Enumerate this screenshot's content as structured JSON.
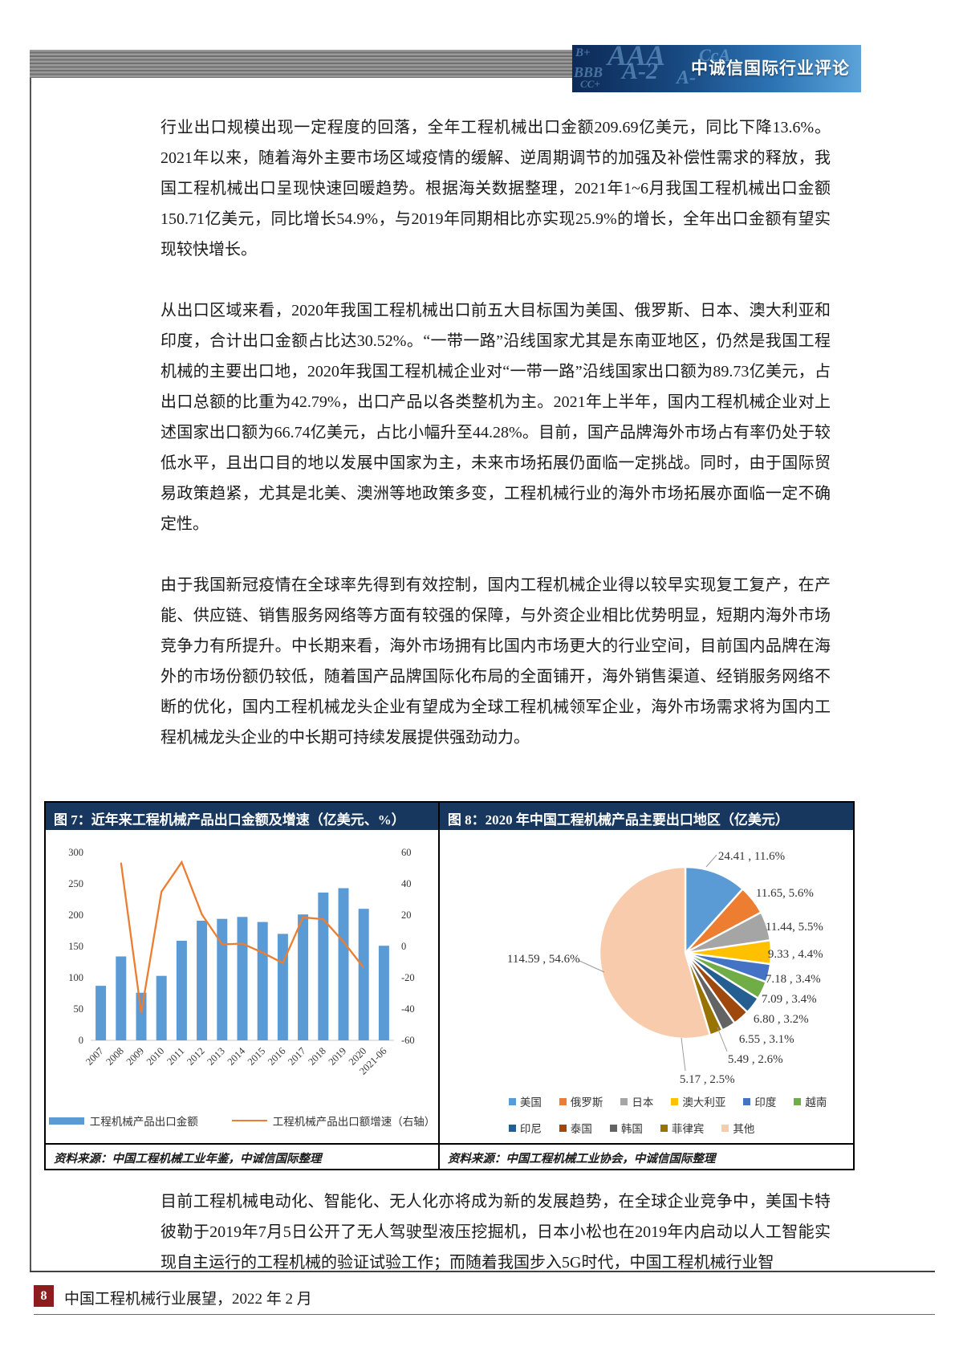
{
  "header": {
    "banner_title": "中诚信国际行业评论",
    "banner_watermarks": [
      "B+",
      "AAA",
      "CcA",
      "BBB",
      "A-2",
      "CC+",
      "A-"
    ]
  },
  "paragraphs": [
    "行业出口规模出现一定程度的回落，全年工程机械出口金额209.69亿美元，同比下降13.6%。2021年以来，随着海外主要市场区域疫情的缓解、逆周期调节的加强及补偿性需求的释放，我国工程机械出口呈现快速回暖趋势。根据海关数据整理，2021年1~6月我国工程机械出口金额150.71亿美元，同比增长54.9%，与2019年同期相比亦实现25.9%的增长，全年出口金额有望实现较快增长。",
    "从出口区域来看，2020年我国工程机械出口前五大目标国为美国、俄罗斯、日本、澳大利亚和印度，合计出口金额占比达30.52%。“一带一路”沿线国家尤其是东南亚地区，仍然是我国工程机械的主要出口地，2020年我国工程机械企业对“一带一路”沿线国家出口额为89.73亿美元，占出口总额的比重为42.79%，出口产品以各类整机为主。2021年上半年，国内工程机械企业对上述国家出口额为66.74亿美元，占比小幅升至44.28%。目前，国产品牌海外市场占有率仍处于较低水平，且出口目的地以发展中国家为主，未来市场拓展仍面临一定挑战。同时，由于国际贸易政策趋紧，尤其是北美、澳洲等地政策多变，工程机械行业的海外市场拓展亦面临一定不确定性。",
    "由于我国新冠疫情在全球率先得到有效控制，国内工程机械企业得以较早实现复工复产，在产能、供应链、销售服务网络等方面有较强的保障，与外资企业相比优势明显，短期内海外市场竞争力有所提升。中长期来看，海外市场拥有比国内市场更大的行业空间，目前国内品牌在海外的市场份额仍较低，随着国产品牌国际化布局的全面铺开，海外销售渠道、经销服务网络不断的优化，国内工程机械龙头企业有望成为全球工程机械领军企业，海外市场需求将为国内工程机械龙头企业的中长期可持续发展提供强劲动力。",
    "目前工程机械电动化、智能化、无人化亦将成为新的发展趋势，在全球企业竞争中，美国卡特彼勒于2019年7月5日公开了无人驾驶型液压挖掘机，日本小松也在2019年内启动以人工智能实现自主运行的工程机械的验证试验工作；而随着我国步入5G时代，中国工程机械行业智"
  ],
  "chart_data": [
    {
      "type": "bar",
      "title": "图 7：近年来工程机械产品出口金额及增速（亿美元、%）",
      "categories": [
        "2007",
        "2008",
        "2009",
        "2010",
        "2011",
        "2012",
        "2013",
        "2014",
        "2015",
        "2016",
        "2017",
        "2018",
        "2019",
        "2020",
        "2021-06"
      ],
      "series": [
        {
          "name": "工程机械产品出口金额",
          "kind": "bar",
          "color": "#5B9BD5",
          "values": [
            87,
            134,
            76,
            103,
            159,
            191,
            194,
            197,
            189,
            170,
            201,
            236,
            243,
            210,
            151
          ]
        },
        {
          "name": "工程机械产品出口额增速（右轴）",
          "kind": "line",
          "color": "#ED7D31",
          "axis": "right",
          "values": [
            null,
            53.5,
            -42.5,
            35,
            53.8,
            20.4,
            1.3,
            1.8,
            -4,
            -10.6,
            18.5,
            17.4,
            2.9,
            -13.6,
            null
          ]
        }
      ],
      "left_axis": {
        "min": 0,
        "max": 300,
        "step": 50
      },
      "right_axis": {
        "min": -60,
        "max": 60,
        "step": 20
      },
      "legend_position": "bottom",
      "grid": false,
      "source": "资料来源：中国工程机械工业年鉴，中诚信国际整理"
    },
    {
      "type": "pie",
      "title": "图 8：2020 年中国工程机械产品主要出口地区（亿美元）",
      "slices": [
        {
          "name": "美国",
          "value": 24.41,
          "share": "11.6%",
          "color": "#5B9BD5",
          "label": "24.41 , 11.6%"
        },
        {
          "name": "俄罗斯",
          "value": 11.65,
          "share": "5.6%",
          "color": "#ED7D31",
          "label": "11.65, 5.6%"
        },
        {
          "name": "日本",
          "value": 11.44,
          "share": "5.5%",
          "color": "#A5A5A5",
          "label": "11.44, 5.5%"
        },
        {
          "name": "澳大利亚",
          "value": 9.33,
          "share": "4.4%",
          "color": "#FFC000",
          "label": "9.33 , 4.4%"
        },
        {
          "name": "印度",
          "value": 7.18,
          "share": "3.4%",
          "color": "#4472C4",
          "label": "7.18 , 3.4%"
        },
        {
          "name": "越南",
          "value": 7.09,
          "share": "3.4%",
          "color": "#70AD47",
          "label": "7.09 , 3.4%"
        },
        {
          "name": "印尼",
          "value": 6.8,
          "share": "3.2%",
          "color": "#255E91",
          "label": "6.80 , 3.2%"
        },
        {
          "name": "泰国",
          "value": 6.55,
          "share": "3.1%",
          "color": "#9E480E",
          "label": "6.55 , 3.1%"
        },
        {
          "name": "韩国",
          "value": 5.49,
          "share": "2.6%",
          "color": "#636363",
          "label": "5.49 , 2.6%"
        },
        {
          "name": "菲律宾",
          "value": 5.17,
          "share": "2.5%",
          "color": "#997300",
          "label": "5.17 , 2.5%"
        },
        {
          "name": "其他",
          "value": 114.59,
          "share": "54.6%",
          "color": "#F8CBAD",
          "label": "114.59 , 54.6%"
        }
      ],
      "legend_position": "bottom",
      "source": "资料来源：中国工程机械工业协会，中诚信国际整理"
    }
  ],
  "colors": {
    "panel_header": "#17375E",
    "page_badge": "#8E1B1D",
    "bar": "#5B9BD5",
    "line": "#ED7D31"
  },
  "footer": {
    "page_number": "8",
    "doc_title": "中国工程机械行业展望，2022 年 2 月"
  }
}
